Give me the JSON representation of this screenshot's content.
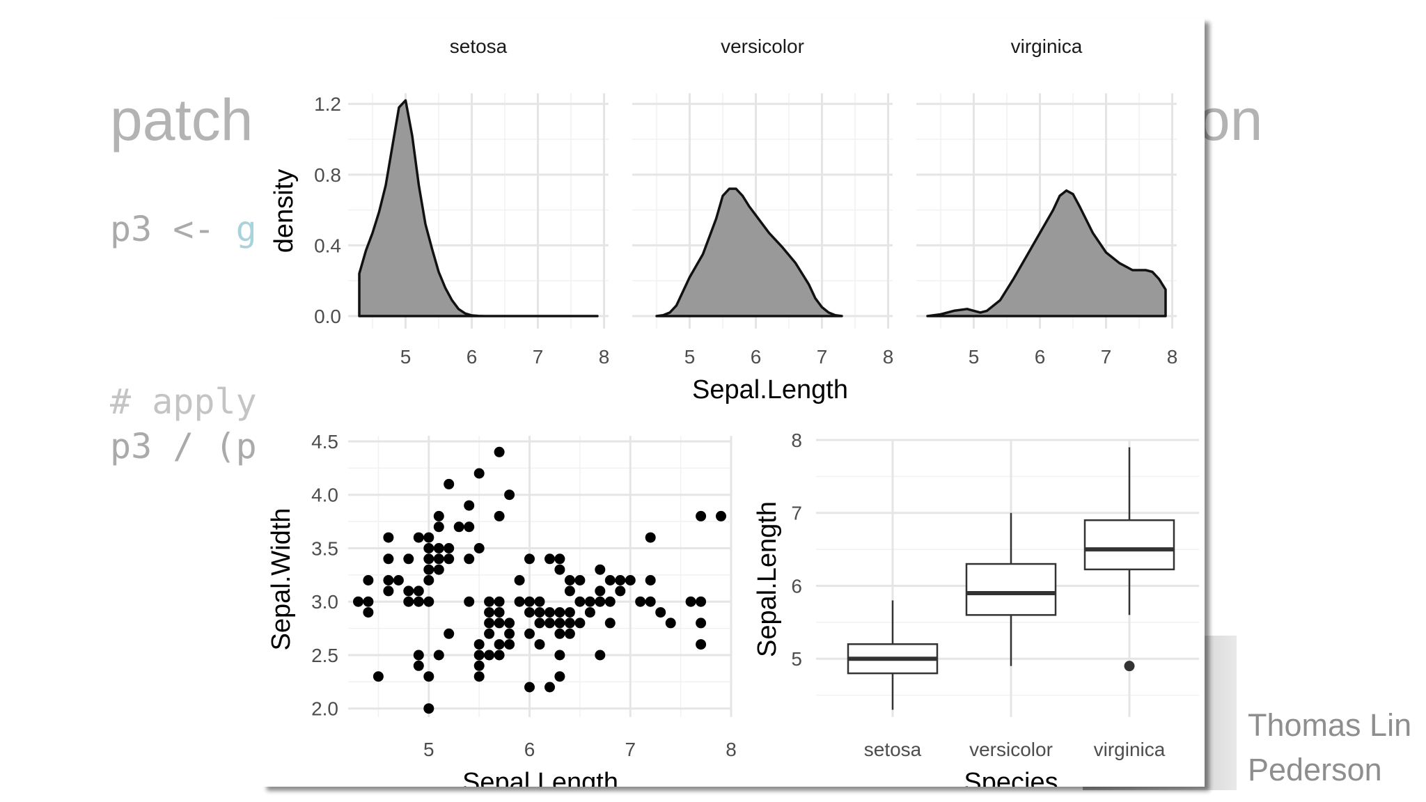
{
  "slide": {
    "title_visible": "patch",
    "title_right_fragment": "on",
    "code_line1_prefix": "p3 <- ",
    "code_line1_fn": "g",
    "comment_fragment": "# apply",
    "code_line2": "p3 / (p",
    "presenter": "Thomas Lin Pederson"
  },
  "chart_data": [
    {
      "type": "area",
      "subtype": "faceted density",
      "facets": [
        "setosa",
        "versicolor",
        "virginica"
      ],
      "xlabel": "Sepal.Length",
      "ylabel": "density",
      "xlim": [
        4.3,
        7.9
      ],
      "ylim": [
        0,
        1.26
      ],
      "xticks": [
        5,
        6,
        7,
        8
      ],
      "xtick_labels": [
        "5",
        "6",
        "7",
        "8"
      ],
      "yticks": [
        0.0,
        0.4,
        0.8,
        1.2
      ],
      "ytick_labels": [
        "0.0",
        "0.4",
        "0.8",
        "1.2"
      ],
      "grid": true,
      "fill": "#999999",
      "series": [
        {
          "name": "setosa",
          "x": [
            4.3,
            4.4,
            4.5,
            4.6,
            4.7,
            4.8,
            4.9,
            5.0,
            5.1,
            5.2,
            5.3,
            5.4,
            5.5,
            5.6,
            5.7,
            5.8,
            5.9,
            6.0,
            6.1,
            6.2,
            7.9
          ],
          "y": [
            0.24,
            0.37,
            0.47,
            0.59,
            0.74,
            0.96,
            1.18,
            1.22,
            1.02,
            0.74,
            0.52,
            0.38,
            0.25,
            0.16,
            0.09,
            0.04,
            0.015,
            0.004,
            0.001,
            0.0,
            0.0
          ]
        },
        {
          "name": "versicolor",
          "x": [
            4.5,
            4.6,
            4.7,
            4.8,
            4.9,
            5.0,
            5.2,
            5.4,
            5.5,
            5.6,
            5.7,
            5.8,
            5.9,
            6.0,
            6.2,
            6.4,
            6.6,
            6.8,
            6.9,
            7.0,
            7.1,
            7.2,
            7.3
          ],
          "y": [
            0.0,
            0.005,
            0.02,
            0.06,
            0.14,
            0.22,
            0.35,
            0.55,
            0.68,
            0.72,
            0.72,
            0.68,
            0.62,
            0.57,
            0.47,
            0.39,
            0.3,
            0.18,
            0.1,
            0.05,
            0.02,
            0.005,
            0.0
          ]
        },
        {
          "name": "virginica",
          "x": [
            4.3,
            4.5,
            4.7,
            4.9,
            5.0,
            5.1,
            5.2,
            5.4,
            5.6,
            5.8,
            6.0,
            6.2,
            6.3,
            6.4,
            6.5,
            6.6,
            6.8,
            7.0,
            7.2,
            7.4,
            7.6,
            7.7,
            7.8,
            7.9
          ],
          "y": [
            0.0,
            0.01,
            0.03,
            0.04,
            0.03,
            0.02,
            0.03,
            0.09,
            0.21,
            0.34,
            0.47,
            0.6,
            0.68,
            0.71,
            0.69,
            0.62,
            0.47,
            0.36,
            0.3,
            0.26,
            0.26,
            0.25,
            0.21,
            0.15
          ]
        }
      ]
    },
    {
      "type": "scatter",
      "xlabel": "Sepal.Length",
      "ylabel": "Sepal.Width",
      "xlim": [
        4.2,
        8.0
      ],
      "ylim": [
        1.92,
        4.5
      ],
      "xticks": [
        5,
        6,
        7,
        8
      ],
      "xtick_labels": [
        "5",
        "6",
        "7",
        "8"
      ],
      "yticks": [
        2.0,
        2.5,
        3.0,
        3.5,
        4.0,
        4.5
      ],
      "ytick_labels": [
        "2.0",
        "2.5",
        "3.0",
        "3.5",
        "4.0",
        "4.5"
      ],
      "grid": true,
      "points": [
        [
          4.3,
          3.0
        ],
        [
          4.4,
          2.9
        ],
        [
          4.4,
          3.0
        ],
        [
          4.4,
          3.2
        ],
        [
          4.5,
          2.3
        ],
        [
          4.6,
          3.1
        ],
        [
          4.6,
          3.2
        ],
        [
          4.6,
          3.4
        ],
        [
          4.6,
          3.6
        ],
        [
          4.7,
          3.2
        ],
        [
          4.8,
          3.0
        ],
        [
          4.8,
          3.1
        ],
        [
          4.8,
          3.4
        ],
        [
          4.9,
          2.4
        ],
        [
          4.9,
          2.5
        ],
        [
          4.9,
          3.0
        ],
        [
          4.9,
          3.1
        ],
        [
          4.9,
          3.6
        ],
        [
          5.0,
          2.0
        ],
        [
          5.0,
          2.3
        ],
        [
          5.0,
          3.0
        ],
        [
          5.0,
          3.2
        ],
        [
          5.0,
          3.3
        ],
        [
          5.0,
          3.4
        ],
        [
          5.0,
          3.5
        ],
        [
          5.0,
          3.6
        ],
        [
          5.1,
          2.5
        ],
        [
          5.1,
          3.3
        ],
        [
          5.1,
          3.4
        ],
        [
          5.1,
          3.5
        ],
        [
          5.1,
          3.7
        ],
        [
          5.1,
          3.8
        ],
        [
          5.2,
          2.7
        ],
        [
          5.2,
          3.4
        ],
        [
          5.2,
          3.5
        ],
        [
          5.2,
          4.1
        ],
        [
          5.3,
          3.7
        ],
        [
          5.4,
          3.0
        ],
        [
          5.4,
          3.4
        ],
        [
          5.4,
          3.7
        ],
        [
          5.4,
          3.9
        ],
        [
          5.5,
          2.3
        ],
        [
          5.5,
          2.4
        ],
        [
          5.5,
          2.5
        ],
        [
          5.5,
          2.6
        ],
        [
          5.5,
          3.5
        ],
        [
          5.5,
          4.2
        ],
        [
          5.6,
          2.5
        ],
        [
          5.6,
          2.7
        ],
        [
          5.6,
          2.8
        ],
        [
          5.6,
          2.9
        ],
        [
          5.6,
          3.0
        ],
        [
          5.7,
          2.5
        ],
        [
          5.7,
          2.6
        ],
        [
          5.7,
          2.8
        ],
        [
          5.7,
          2.9
        ],
        [
          5.7,
          3.0
        ],
        [
          5.7,
          3.8
        ],
        [
          5.7,
          4.4
        ],
        [
          5.8,
          2.6
        ],
        [
          5.8,
          2.7
        ],
        [
          5.8,
          2.8
        ],
        [
          5.8,
          4.0
        ],
        [
          5.9,
          3.0
        ],
        [
          5.9,
          3.2
        ],
        [
          6.0,
          2.2
        ],
        [
          6.0,
          2.7
        ],
        [
          6.0,
          2.9
        ],
        [
          6.0,
          3.0
        ],
        [
          6.0,
          3.4
        ],
        [
          6.1,
          2.6
        ],
        [
          6.1,
          2.8
        ],
        [
          6.1,
          2.9
        ],
        [
          6.1,
          3.0
        ],
        [
          6.2,
          2.2
        ],
        [
          6.2,
          2.8
        ],
        [
          6.2,
          2.9
        ],
        [
          6.2,
          3.4
        ],
        [
          6.3,
          2.3
        ],
        [
          6.3,
          2.5
        ],
        [
          6.3,
          2.7
        ],
        [
          6.3,
          2.8
        ],
        [
          6.3,
          2.9
        ],
        [
          6.3,
          3.3
        ],
        [
          6.3,
          3.4
        ],
        [
          6.4,
          2.7
        ],
        [
          6.4,
          2.8
        ],
        [
          6.4,
          2.9
        ],
        [
          6.4,
          3.1
        ],
        [
          6.4,
          3.2
        ],
        [
          6.5,
          2.8
        ],
        [
          6.5,
          3.0
        ],
        [
          6.5,
          3.2
        ],
        [
          6.6,
          2.9
        ],
        [
          6.6,
          3.0
        ],
        [
          6.7,
          2.5
        ],
        [
          6.7,
          3.0
        ],
        [
          6.7,
          3.1
        ],
        [
          6.7,
          3.3
        ],
        [
          6.8,
          2.8
        ],
        [
          6.8,
          3.0
        ],
        [
          6.8,
          3.2
        ],
        [
          6.9,
          3.1
        ],
        [
          6.9,
          3.2
        ],
        [
          7.0,
          3.2
        ],
        [
          7.1,
          3.0
        ],
        [
          7.2,
          3.0
        ],
        [
          7.2,
          3.2
        ],
        [
          7.2,
          3.6
        ],
        [
          7.3,
          2.9
        ],
        [
          7.4,
          2.8
        ],
        [
          7.6,
          3.0
        ],
        [
          7.7,
          2.6
        ],
        [
          7.7,
          2.8
        ],
        [
          7.7,
          3.0
        ],
        [
          7.7,
          3.8
        ],
        [
          7.9,
          3.8
        ]
      ]
    },
    {
      "type": "box",
      "xlabel": "Species",
      "ylabel": "Sepal.Length",
      "categories": [
        "setosa",
        "versicolor",
        "virginica"
      ],
      "ylim": [
        4.2,
        8.0
      ],
      "yticks": [
        5,
        6,
        7,
        8
      ],
      "ytick_labels": [
        "5",
        "6",
        "7",
        "8"
      ],
      "grid": true,
      "boxes": [
        {
          "name": "setosa",
          "whisker_low": 4.3,
          "q1": 4.8,
          "median": 5.0,
          "q3": 5.2,
          "whisker_high": 5.8,
          "outliers": []
        },
        {
          "name": "versicolor",
          "whisker_low": 4.9,
          "q1": 5.6,
          "median": 5.9,
          "q3": 6.3,
          "whisker_high": 7.0,
          "outliers": []
        },
        {
          "name": "virginica",
          "whisker_low": 5.6,
          "q1": 6.225,
          "median": 6.5,
          "q3": 6.9,
          "whisker_high": 7.9,
          "outliers": [
            4.9
          ]
        }
      ]
    }
  ]
}
